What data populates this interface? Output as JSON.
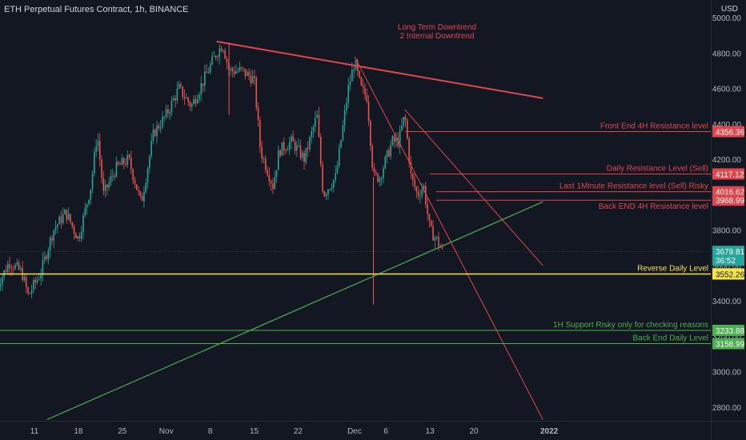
{
  "header": {
    "title": "ETH Perpetual Futures Contract, 1h, BINANCE",
    "unit": "USD"
  },
  "colors": {
    "background": "#131722",
    "up": "#26a69a",
    "down": "#ef5350",
    "axis_text": "#b2b5be",
    "trend_red": "#e0474c",
    "support_green": "#4caf50",
    "reverse_yellow": "#f5e642"
  },
  "chart_data": {
    "type": "candlestick",
    "symbol": "ETH Perpetual Futures Contract",
    "interval": "1h",
    "exchange": "BINANCE",
    "y_axis": {
      "ticks": [
        5000,
        4800,
        4600,
        4400,
        4200,
        4000,
        3800,
        3600,
        3400,
        3200,
        3000,
        2800
      ],
      "tick_labels": [
        "5000.00",
        "4800.00",
        "4600.00",
        "4400.00",
        "4200.00",
        "4000.00",
        "3800.00",
        "3600.00",
        "3400.00",
        "3200.00",
        "3000.00",
        "2800.00"
      ],
      "range": [
        2730,
        5070
      ]
    },
    "x_axis": {
      "ticks": [
        "11",
        "18",
        "25",
        "Nov",
        "8",
        "15",
        "22",
        "Dec",
        "6",
        "13",
        "20",
        "2022"
      ],
      "tick_dates": [
        "2021-10-11",
        "2021-10-18",
        "2021-10-25",
        "2021-11-01",
        "2021-11-08",
        "2021-11-15",
        "2021-11-22",
        "2021-12-01",
        "2021-12-06",
        "2021-12-13",
        "2021-12-20",
        "2022-01-01"
      ]
    },
    "last_price": {
      "label": "3679.81",
      "countdown": "36:52",
      "value": 3679.81
    },
    "price_path": [
      {
        "date": "2021-10-05",
        "price": 3480
      },
      {
        "date": "2021-10-07",
        "price": 3620
      },
      {
        "date": "2021-10-09",
        "price": 3560
      },
      {
        "date": "2021-10-10",
        "price": 3430
      },
      {
        "date": "2021-10-12",
        "price": 3560
      },
      {
        "date": "2021-10-14",
        "price": 3800
      },
      {
        "date": "2021-10-16",
        "price": 3900
      },
      {
        "date": "2021-10-18",
        "price": 3750
      },
      {
        "date": "2021-10-20",
        "price": 4050
      },
      {
        "date": "2021-10-21",
        "price": 4350
      },
      {
        "date": "2021-10-22",
        "price": 4000
      },
      {
        "date": "2021-10-24",
        "price": 4150
      },
      {
        "date": "2021-10-26",
        "price": 4200
      },
      {
        "date": "2021-10-28",
        "price": 3950
      },
      {
        "date": "2021-10-30",
        "price": 4350
      },
      {
        "date": "2021-11-01",
        "price": 4450
      },
      {
        "date": "2021-11-03",
        "price": 4600
      },
      {
        "date": "2021-11-05",
        "price": 4500
      },
      {
        "date": "2021-11-07",
        "price": 4650
      },
      {
        "date": "2021-11-09",
        "price": 4800
      },
      {
        "date": "2021-11-10",
        "price": 4850
      },
      {
        "date": "2021-11-11",
        "price": 4700
      },
      {
        "date": "2021-11-13",
        "price": 4700
      },
      {
        "date": "2021-11-15",
        "price": 4650
      },
      {
        "date": "2021-11-16",
        "price": 4250
      },
      {
        "date": "2021-11-18",
        "price": 4050
      },
      {
        "date": "2021-11-19",
        "price": 4250
      },
      {
        "date": "2021-11-21",
        "price": 4300
      },
      {
        "date": "2021-11-23",
        "price": 4200
      },
      {
        "date": "2021-11-25",
        "price": 4450
      },
      {
        "date": "2021-11-26",
        "price": 4000
      },
      {
        "date": "2021-11-28",
        "price": 4100
      },
      {
        "date": "2021-11-30",
        "price": 4600
      },
      {
        "date": "2021-12-01",
        "price": 4750
      },
      {
        "date": "2021-12-02",
        "price": 4600
      },
      {
        "date": "2021-12-03",
        "price": 4550
      },
      {
        "date": "2021-12-04",
        "price": 4100
      },
      {
        "date": "2021-12-05",
        "price": 4100
      },
      {
        "date": "2021-12-07",
        "price": 4300
      },
      {
        "date": "2021-12-08",
        "price": 4300
      },
      {
        "date": "2021-12-09",
        "price": 4450
      },
      {
        "date": "2021-12-10",
        "price": 4100
      },
      {
        "date": "2021-12-11",
        "price": 4000
      },
      {
        "date": "2021-12-12",
        "price": 4050
      },
      {
        "date": "2021-12-13",
        "price": 3800
      },
      {
        "date": "2021-12-14",
        "price": 3750
      },
      {
        "date": "2021-12-15",
        "price": 3680
      }
    ],
    "lines": [
      {
        "name": "Long Term Downtrend",
        "color": "red",
        "width": 2,
        "points": [
          {
            "date": "2021-11-09",
            "price": 4865
          },
          {
            "date": "2021-12-31",
            "price": 4545
          }
        ]
      },
      {
        "name": "Internal Downtrend 1",
        "color": "red",
        "width": 1,
        "points": [
          {
            "date": "2021-12-01",
            "price": 4780
          },
          {
            "date": "2021-12-31",
            "price": 2730
          }
        ]
      },
      {
        "name": "Internal Downtrend 2",
        "color": "red",
        "width": 1,
        "points": [
          {
            "date": "2021-12-09",
            "price": 4480
          },
          {
            "date": "2021-12-31",
            "price": 3600
          }
        ]
      },
      {
        "name": "Support Uptrend",
        "color": "green",
        "width": 1.2,
        "points": [
          {
            "date": "2021-10-13",
            "price": 2730
          },
          {
            "date": "2021-12-31",
            "price": 3960
          }
        ]
      }
    ],
    "levels": [
      {
        "label": "Front End 4H Resistance level",
        "value": 4356.36,
        "price_label": "4356.36",
        "color": "red"
      },
      {
        "label": "Daily Resistance Level (Sell)",
        "value": 4117.12,
        "price_label": "4117.12",
        "color": "red"
      },
      {
        "label": "Last 1Minute Resistance level (Sell) Risky",
        "value": 4016.62,
        "price_label": "4016.62",
        "color": "red"
      },
      {
        "label": "Back END 4H Resistance level",
        "value": 3968.99,
        "price_label": "3968.99",
        "color": "red"
      },
      {
        "label": "Reverse Daily Level",
        "value": 3552.26,
        "price_label": "3552.26",
        "color": "yellow"
      },
      {
        "label": "1H Support Risky only for checking reasons",
        "value": 3233.88,
        "price_label": "3233.88",
        "color": "green"
      },
      {
        "label": "Back End Daily Level",
        "value": 3158.99,
        "price_label": "3158.99",
        "color": "green"
      }
    ],
    "annotations": [
      "Long Term Downtrend",
      "2 Internal Downtrend"
    ]
  }
}
